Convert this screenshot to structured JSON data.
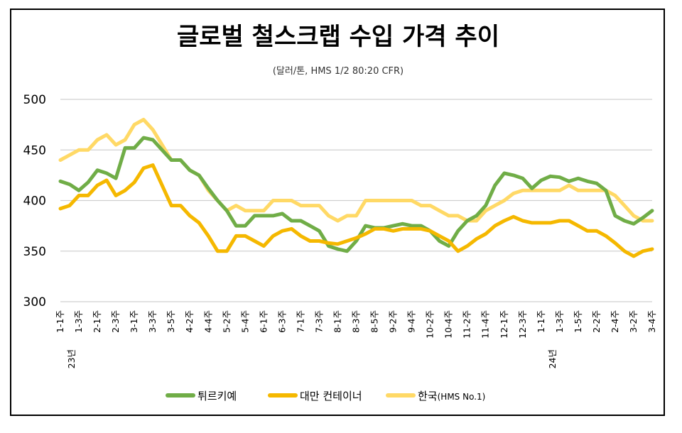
{
  "chart_data": {
    "type": "line",
    "title": "글로벌 철스크랩 수입 가격 추이",
    "subtitle": "(달러/톤, HMS 1/2 80:20 CFR)",
    "ylim": [
      300,
      500
    ],
    "yticks": [
      300,
      350,
      400,
      450,
      500
    ],
    "grid": true,
    "legend_position": "bottom",
    "x_tick_labels": [
      "1-1주",
      "1-3주",
      "2-1주",
      "2-3주",
      "3-1주",
      "3-3주",
      "3-5주",
      "4-2주",
      "4-4주",
      "5-2주",
      "5-4주",
      "6-1주",
      "6-3주",
      "7-1주",
      "7-3주",
      "8-1주",
      "8-3주",
      "8-5주",
      "9-2주",
      "9-4주",
      "10-2주",
      "10-4주",
      "11-2주",
      "11-4주",
      "12-1주",
      "12-3주",
      "1-1주",
      "1-3주",
      "1-5주",
      "2-2주",
      "2-4주",
      "3-2주",
      "3-4주"
    ],
    "year_labels": [
      {
        "text": "23년",
        "tick_index": 0
      },
      {
        "text": "24년",
        "tick_index": 26
      }
    ],
    "series": [
      {
        "name": "튀르키예",
        "color": "#70AD47",
        "values": [
          419,
          416,
          410,
          418,
          430,
          427,
          422,
          452,
          452,
          462,
          460,
          450,
          440,
          440,
          430,
          425,
          412,
          400,
          390,
          375,
          375,
          385,
          385,
          385,
          387,
          380,
          380,
          375,
          370,
          355,
          352,
          350,
          360,
          375,
          373,
          373,
          375,
          377,
          375,
          375,
          370,
          360,
          355,
          370,
          380,
          385,
          395,
          415,
          427,
          425,
          422,
          412,
          420,
          424,
          423,
          419,
          422,
          419,
          417,
          410,
          385,
          380,
          377,
          383,
          390
        ]
      },
      {
        "name": "대만 컨테이너",
        "color": "#F5B800",
        "values": [
          392,
          395,
          405,
          405,
          415,
          420,
          405,
          410,
          418,
          432,
          435,
          415,
          395,
          395,
          385,
          378,
          365,
          350,
          350,
          365,
          365,
          360,
          355,
          365,
          370,
          372,
          365,
          360,
          360,
          358,
          357,
          360,
          363,
          367,
          372,
          372,
          370,
          372,
          372,
          372,
          370,
          365,
          360,
          350,
          355,
          362,
          367,
          375,
          380,
          384,
          380,
          378,
          378,
          378,
          380,
          380,
          375,
          370,
          370,
          365,
          358,
          350,
          345,
          350,
          352
        ]
      },
      {
        "name": "한국",
        "name_suffix": "(HMS No.1)",
        "color": "#FFD966",
        "values": [
          440,
          445,
          450,
          450,
          460,
          465,
          455,
          460,
          475,
          480,
          470,
          455,
          440,
          440,
          430,
          425,
          410,
          400,
          390,
          395,
          390,
          390,
          390,
          400,
          400,
          400,
          395,
          395,
          395,
          385,
          380,
          385,
          385,
          400,
          400,
          400,
          400,
          400,
          400,
          395,
          395,
          390,
          385,
          385,
          380,
          380,
          390,
          395,
          400,
          407,
          410,
          410,
          410,
          410,
          410,
          415,
          410,
          410,
          410,
          410,
          405,
          395,
          385,
          380,
          380
        ]
      }
    ]
  }
}
